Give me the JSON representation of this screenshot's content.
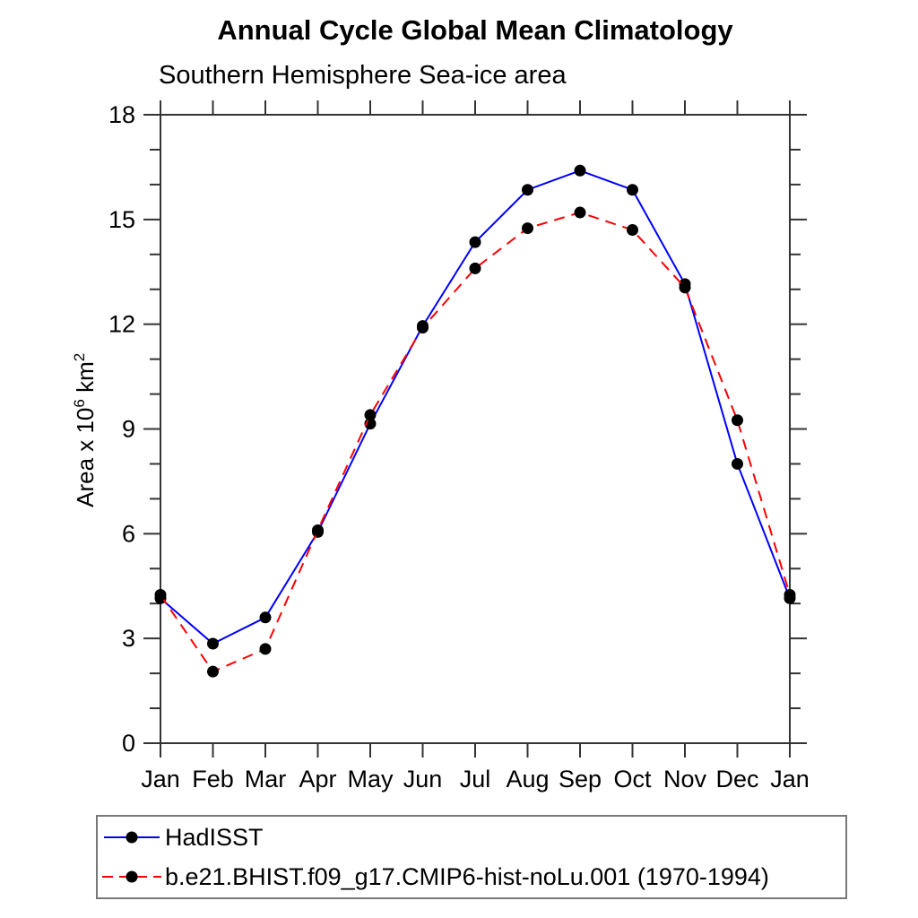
{
  "title": "Annual Cycle Global Mean Climatology",
  "subtitle": "Southern Hemisphere Sea-ice area",
  "y_axis_label": {
    "prefix": "Area x 10",
    "sup1": "6",
    "mid": " km",
    "sup2": "2"
  },
  "chart_data": {
    "type": "line",
    "categories": [
      "Jan",
      "Feb",
      "Mar",
      "Apr",
      "May",
      "Jun",
      "Jul",
      "Aug",
      "Sep",
      "Oct",
      "Nov",
      "Dec",
      "Jan"
    ],
    "series": [
      {
        "name": "HadISST",
        "color": "#0000ff",
        "style": "solid",
        "marker": "filled-circle",
        "marker_color": "#000000",
        "values": [
          4.15,
          2.85,
          3.6,
          6.05,
          9.15,
          11.95,
          14.35,
          15.85,
          16.4,
          15.85,
          13.15,
          8.0,
          4.15
        ]
      },
      {
        "name": "b.e21.BHIST.f09_g17.CMIP6-hist-noLu.001 (1970-1994)",
        "color": "#ff0000",
        "style": "dashed",
        "marker": "filled-circle",
        "marker_color": "#000000",
        "values": [
          4.25,
          2.05,
          2.7,
          6.1,
          9.4,
          11.9,
          13.6,
          14.75,
          15.2,
          14.7,
          13.05,
          9.25,
          4.25
        ]
      }
    ],
    "xlabel": "",
    "ylabel": "Area x 10^6 km^2",
    "ylim": [
      0,
      18
    ],
    "y_major_ticks": [
      0,
      3,
      6,
      9,
      12,
      15,
      18
    ],
    "y_minor_step": 1,
    "grid": false,
    "frame": "box-with-outward-ticks",
    "legend_position": "bottom"
  }
}
